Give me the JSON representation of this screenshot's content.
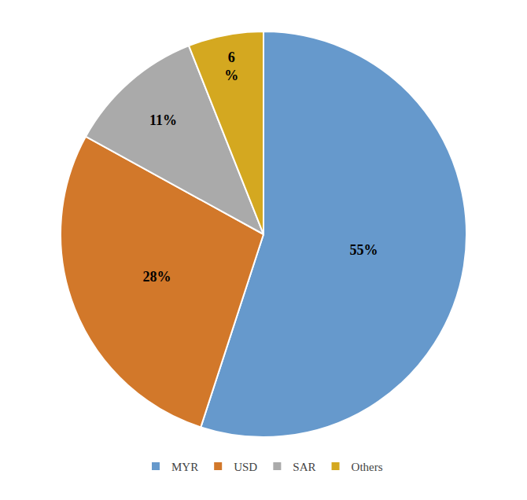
{
  "chart_data": {
    "type": "pie",
    "categories": [
      "MYR",
      "USD",
      "SAR",
      "Others"
    ],
    "values": [
      55,
      28,
      11,
      6
    ],
    "value_labels": [
      "55%",
      "28%",
      "11%",
      "6\n%"
    ],
    "colors": [
      "#6699cc",
      "#d2782a",
      "#aaaaaa",
      "#d4a820"
    ],
    "data_labels": true,
    "legend": "bottom"
  }
}
